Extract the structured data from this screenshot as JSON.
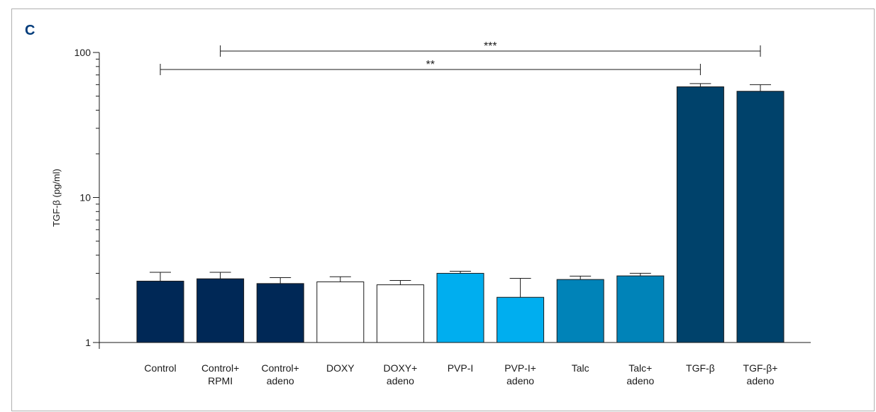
{
  "panel_label": "C",
  "chart_data": {
    "type": "bar",
    "title": "",
    "xlabel": "",
    "ylabel": "TGF-β (pg/ml)",
    "yscale": "log",
    "ylim": [
      1,
      100
    ],
    "yticks": [
      "1",
      "10",
      "100"
    ],
    "grid": false,
    "categories": [
      [
        "Control"
      ],
      [
        "Control+",
        "RPMI"
      ],
      [
        "Control+",
        "adeno"
      ],
      [
        "DOXY"
      ],
      [
        "DOXY+",
        "adeno"
      ],
      [
        "PVP-I"
      ],
      [
        "PVP-I+",
        "adeno"
      ],
      [
        "Talc"
      ],
      [
        "Talc+",
        "adeno"
      ],
      [
        "TGF-β"
      ],
      [
        "TGF-β+",
        "adeno"
      ]
    ],
    "values": [
      2.65,
      2.75,
      2.55,
      2.62,
      2.5,
      3.0,
      2.05,
      2.72,
      2.88,
      58,
      54
    ],
    "errors": [
      0.4,
      0.3,
      0.25,
      0.22,
      0.18,
      0.1,
      0.72,
      0.15,
      0.12,
      3,
      6
    ],
    "bar_colors": [
      "#002856",
      "#002856",
      "#002856",
      "#ffffff",
      "#ffffff",
      "#00aeef",
      "#00aeef",
      "#0083b8",
      "#0083b8",
      "#00426b",
      "#00426b"
    ],
    "significance": [
      {
        "from": 0,
        "to": 9,
        "label": "**"
      },
      {
        "from": 1,
        "to": 10,
        "label": "***"
      }
    ]
  }
}
